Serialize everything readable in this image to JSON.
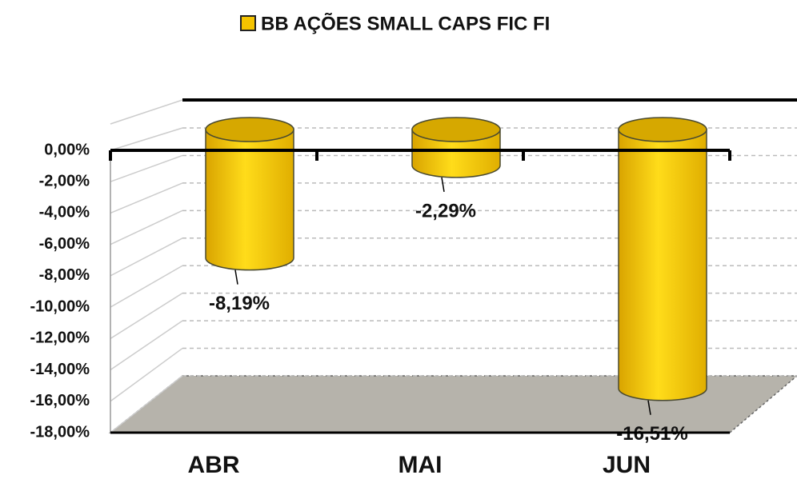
{
  "chart_data": {
    "type": "bar",
    "categories": [
      "ABR",
      "MAI",
      "JUN"
    ],
    "series": [
      {
        "name": "BB AÇÕES SMALL CAPS FIC FI",
        "color": "#f5c400",
        "values": [
          -8.19,
          -2.29,
          -16.51
        ],
        "value_labels": [
          "-8,19%",
          "-2,29%",
          "-16,51%"
        ]
      }
    ],
    "ylim": [
      -18,
      0
    ],
    "yticks": [
      {
        "value": 0,
        "label": "0,00%"
      },
      {
        "value": -2,
        "label": "-2,00%"
      },
      {
        "value": -4,
        "label": "-4,00%"
      },
      {
        "value": -6,
        "label": "-6,00%"
      },
      {
        "value": -8,
        "label": "-8,00%"
      },
      {
        "value": -10,
        "label": "-10,00%"
      },
      {
        "value": -12,
        "label": "-12,00%"
      },
      {
        "value": -14,
        "label": "-14,00%"
      },
      {
        "value": -16,
        "label": "-16,00%"
      },
      {
        "value": -18,
        "label": "-18,00%"
      }
    ],
    "grid": true,
    "legend": "top"
  }
}
